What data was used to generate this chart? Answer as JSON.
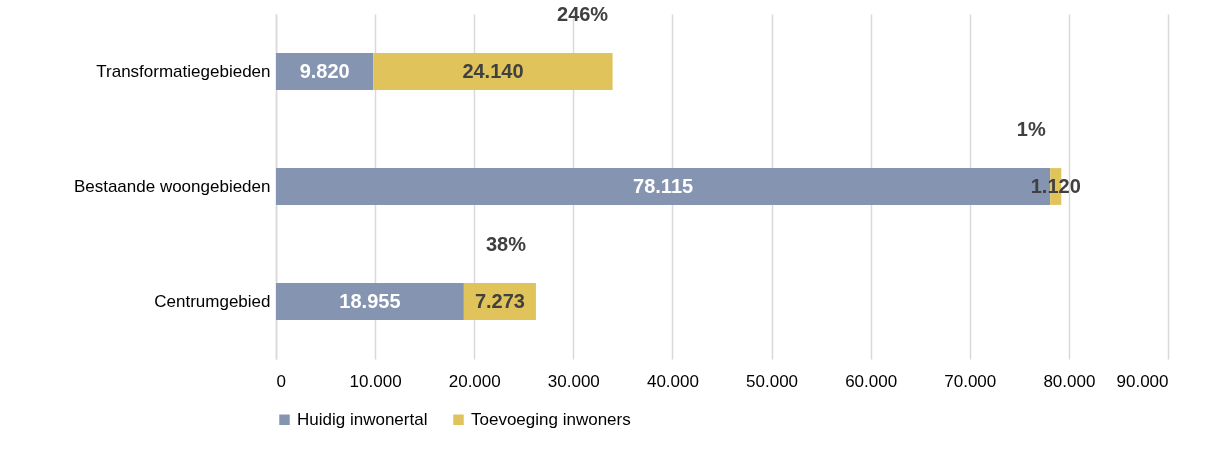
{
  "chart_data": {
    "type": "bar",
    "orientation": "horizontal",
    "stacked": true,
    "categories": [
      "Transformatiegebieden",
      "Bestaande woongebieden",
      "Centrumgebied"
    ],
    "series": [
      {
        "name": "Huidig inwonertal",
        "color": "#8594b0",
        "values": [
          9820,
          78115,
          18955
        ],
        "value_labels": [
          "9.820",
          "78.115",
          "18.955"
        ]
      },
      {
        "name": "Toevoeging inwoners",
        "color": "#e0c35a",
        "values": [
          24140,
          1120,
          7273
        ],
        "value_labels": [
          "24.140",
          "1.120",
          "7.273"
        ]
      }
    ],
    "xlim": [
      0,
      90000
    ],
    "xticks": [
      0,
      {
        "value": 10000,
        "label": "10.000"
      },
      {
        "value": 20000,
        "label": "20.000"
      },
      {
        "value": 30000,
        "label": "30.000"
      },
      {
        "value": 40000,
        "label": "40.000"
      },
      {
        "value": 50000,
        "label": "50.000"
      },
      {
        "value": 60000,
        "label": "60.000"
      },
      {
        "value": 70000,
        "label": "70.000"
      },
      {
        "value": 80000,
        "label": "80.000"
      },
      {
        "value": 90000,
        "label": "90.000"
      }
    ],
    "annotations": [
      {
        "text": "246%",
        "x": 33960,
        "y": "Transformatiegebieden"
      },
      {
        "text": "1%",
        "x": 79235,
        "y": "Bestaande woongebieden"
      },
      {
        "text": "38%",
        "x": 26228,
        "y": "Centrumgebied"
      }
    ],
    "grid": "x",
    "legend": "bottom"
  }
}
